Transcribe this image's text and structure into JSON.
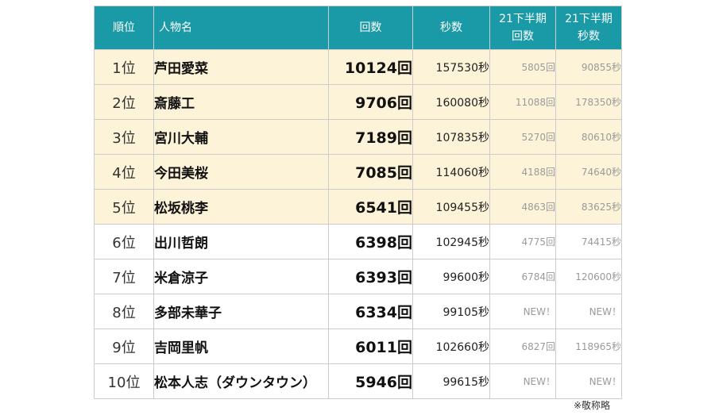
{
  "headers": {
    "rank": "順位",
    "name": "人物名",
    "count": "回数",
    "seconds": "秒数",
    "h21_count": [
      "21下半期",
      "回数"
    ],
    "h21_seconds": [
      "21下半期",
      "秒数"
    ]
  },
  "rows": [
    {
      "rank": "1位",
      "name": "芦田愛菜",
      "count": "10124回",
      "seconds": "157530秒",
      "h21_count": "5805回",
      "h21_seconds": "90855秒"
    },
    {
      "rank": "2位",
      "name": "斎藤工",
      "count": "9706回",
      "seconds": "160080秒",
      "h21_count": "11088回",
      "h21_seconds": "178350秒"
    },
    {
      "rank": "3位",
      "name": "宮川大輔",
      "count": "7189回",
      "seconds": "107835秒",
      "h21_count": "5270回",
      "h21_seconds": "80610秒"
    },
    {
      "rank": "4位",
      "name": "今田美桜",
      "count": "7085回",
      "seconds": "114060秒",
      "h21_count": "4188回",
      "h21_seconds": "74640秒"
    },
    {
      "rank": "5位",
      "name": "松坂桃李",
      "count": "6541回",
      "seconds": "109455秒",
      "h21_count": "4863回",
      "h21_seconds": "83625秒"
    },
    {
      "rank": "6位",
      "name": "出川哲朗",
      "count": "6398回",
      "seconds": "102945秒",
      "h21_count": "4775回",
      "h21_seconds": "74415秒"
    },
    {
      "rank": "7位",
      "name": "米倉涼子",
      "count": "6393回",
      "seconds": "99600秒",
      "h21_count": "6784回",
      "h21_seconds": "120600秒"
    },
    {
      "rank": "8位",
      "name": "多部未華子",
      "count": "6334回",
      "seconds": "99105秒",
      "h21_count": "NEW！",
      "h21_seconds": "NEW！"
    },
    {
      "rank": "9位",
      "name": "吉岡里帆",
      "count": "6011回",
      "seconds": "102660秒",
      "h21_count": "6827回",
      "h21_seconds": "118965秒"
    },
    {
      "rank": "10位",
      "name": "松本人志（ダウンタウン）",
      "count": "5946回",
      "seconds": "99615秒",
      "h21_count": "NEW！",
      "h21_seconds": "NEW！"
    }
  ],
  "highlight_top": 5,
  "note": "※敬称略",
  "colors": {
    "header_bg": "#1a9aa6",
    "highlight_bg": "#fdf3d8",
    "muted_text": "#9a9a9a"
  }
}
